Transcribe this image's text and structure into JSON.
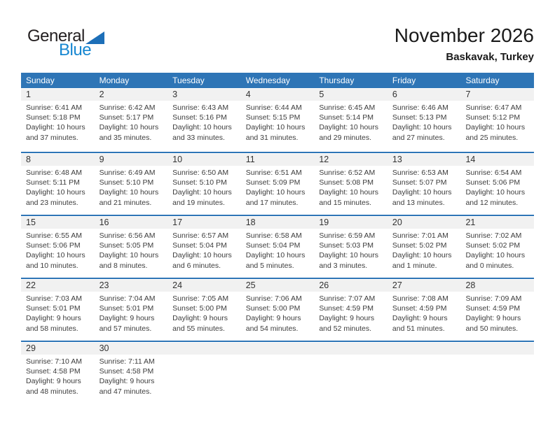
{
  "logo": {
    "part1": "General",
    "part2": "Blue"
  },
  "header": {
    "title": "November 2026",
    "location": "Baskavak, Turkey"
  },
  "colors": {
    "header_blue": "#2e75b6",
    "row_border_blue": "#2e75b6",
    "band_gray": "#f1f1f1",
    "logo_text_blue": "#1787d1",
    "logo_triangle_blue": "#1d6fb8"
  },
  "weekdays": [
    "Sunday",
    "Monday",
    "Tuesday",
    "Wednesday",
    "Thursday",
    "Friday",
    "Saturday"
  ],
  "weeks": [
    {
      "days": [
        {
          "num": "1",
          "l1": "Sunrise: 6:41 AM",
          "l2": "Sunset: 5:18 PM",
          "l3": "Daylight: 10 hours",
          "l4": "and 37 minutes."
        },
        {
          "num": "2",
          "l1": "Sunrise: 6:42 AM",
          "l2": "Sunset: 5:17 PM",
          "l3": "Daylight: 10 hours",
          "l4": "and 35 minutes."
        },
        {
          "num": "3",
          "l1": "Sunrise: 6:43 AM",
          "l2": "Sunset: 5:16 PM",
          "l3": "Daylight: 10 hours",
          "l4": "and 33 minutes."
        },
        {
          "num": "4",
          "l1": "Sunrise: 6:44 AM",
          "l2": "Sunset: 5:15 PM",
          "l3": "Daylight: 10 hours",
          "l4": "and 31 minutes."
        },
        {
          "num": "5",
          "l1": "Sunrise: 6:45 AM",
          "l2": "Sunset: 5:14 PM",
          "l3": "Daylight: 10 hours",
          "l4": "and 29 minutes."
        },
        {
          "num": "6",
          "l1": "Sunrise: 6:46 AM",
          "l2": "Sunset: 5:13 PM",
          "l3": "Daylight: 10 hours",
          "l4": "and 27 minutes."
        },
        {
          "num": "7",
          "l1": "Sunrise: 6:47 AM",
          "l2": "Sunset: 5:12 PM",
          "l3": "Daylight: 10 hours",
          "l4": "and 25 minutes."
        }
      ]
    },
    {
      "days": [
        {
          "num": "8",
          "l1": "Sunrise: 6:48 AM",
          "l2": "Sunset: 5:11 PM",
          "l3": "Daylight: 10 hours",
          "l4": "and 23 minutes."
        },
        {
          "num": "9",
          "l1": "Sunrise: 6:49 AM",
          "l2": "Sunset: 5:10 PM",
          "l3": "Daylight: 10 hours",
          "l4": "and 21 minutes."
        },
        {
          "num": "10",
          "l1": "Sunrise: 6:50 AM",
          "l2": "Sunset: 5:10 PM",
          "l3": "Daylight: 10 hours",
          "l4": "and 19 minutes."
        },
        {
          "num": "11",
          "l1": "Sunrise: 6:51 AM",
          "l2": "Sunset: 5:09 PM",
          "l3": "Daylight: 10 hours",
          "l4": "and 17 minutes."
        },
        {
          "num": "12",
          "l1": "Sunrise: 6:52 AM",
          "l2": "Sunset: 5:08 PM",
          "l3": "Daylight: 10 hours",
          "l4": "and 15 minutes."
        },
        {
          "num": "13",
          "l1": "Sunrise: 6:53 AM",
          "l2": "Sunset: 5:07 PM",
          "l3": "Daylight: 10 hours",
          "l4": "and 13 minutes."
        },
        {
          "num": "14",
          "l1": "Sunrise: 6:54 AM",
          "l2": "Sunset: 5:06 PM",
          "l3": "Daylight: 10 hours",
          "l4": "and 12 minutes."
        }
      ]
    },
    {
      "days": [
        {
          "num": "15",
          "l1": "Sunrise: 6:55 AM",
          "l2": "Sunset: 5:06 PM",
          "l3": "Daylight: 10 hours",
          "l4": "and 10 minutes."
        },
        {
          "num": "16",
          "l1": "Sunrise: 6:56 AM",
          "l2": "Sunset: 5:05 PM",
          "l3": "Daylight: 10 hours",
          "l4": "and 8 minutes."
        },
        {
          "num": "17",
          "l1": "Sunrise: 6:57 AM",
          "l2": "Sunset: 5:04 PM",
          "l3": "Daylight: 10 hours",
          "l4": "and 6 minutes."
        },
        {
          "num": "18",
          "l1": "Sunrise: 6:58 AM",
          "l2": "Sunset: 5:04 PM",
          "l3": "Daylight: 10 hours",
          "l4": "and 5 minutes."
        },
        {
          "num": "19",
          "l1": "Sunrise: 6:59 AM",
          "l2": "Sunset: 5:03 PM",
          "l3": "Daylight: 10 hours",
          "l4": "and 3 minutes."
        },
        {
          "num": "20",
          "l1": "Sunrise: 7:01 AM",
          "l2": "Sunset: 5:02 PM",
          "l3": "Daylight: 10 hours",
          "l4": "and 1 minute."
        },
        {
          "num": "21",
          "l1": "Sunrise: 7:02 AM",
          "l2": "Sunset: 5:02 PM",
          "l3": "Daylight: 10 hours",
          "l4": "and 0 minutes."
        }
      ]
    },
    {
      "days": [
        {
          "num": "22",
          "l1": "Sunrise: 7:03 AM",
          "l2": "Sunset: 5:01 PM",
          "l3": "Daylight: 9 hours",
          "l4": "and 58 minutes."
        },
        {
          "num": "23",
          "l1": "Sunrise: 7:04 AM",
          "l2": "Sunset: 5:01 PM",
          "l3": "Daylight: 9 hours",
          "l4": "and 57 minutes."
        },
        {
          "num": "24",
          "l1": "Sunrise: 7:05 AM",
          "l2": "Sunset: 5:00 PM",
          "l3": "Daylight: 9 hours",
          "l4": "and 55 minutes."
        },
        {
          "num": "25",
          "l1": "Sunrise: 7:06 AM",
          "l2": "Sunset: 5:00 PM",
          "l3": "Daylight: 9 hours",
          "l4": "and 54 minutes."
        },
        {
          "num": "26",
          "l1": "Sunrise: 7:07 AM",
          "l2": "Sunset: 4:59 PM",
          "l3": "Daylight: 9 hours",
          "l4": "and 52 minutes."
        },
        {
          "num": "27",
          "l1": "Sunrise: 7:08 AM",
          "l2": "Sunset: 4:59 PM",
          "l3": "Daylight: 9 hours",
          "l4": "and 51 minutes."
        },
        {
          "num": "28",
          "l1": "Sunrise: 7:09 AM",
          "l2": "Sunset: 4:59 PM",
          "l3": "Daylight: 9 hours",
          "l4": "and 50 minutes."
        }
      ]
    },
    {
      "days": [
        {
          "num": "29",
          "l1": "Sunrise: 7:10 AM",
          "l2": "Sunset: 4:58 PM",
          "l3": "Daylight: 9 hours",
          "l4": "and 48 minutes."
        },
        {
          "num": "30",
          "l1": "Sunrise: 7:11 AM",
          "l2": "Sunset: 4:58 PM",
          "l3": "Daylight: 9 hours",
          "l4": "and 47 minutes."
        },
        {
          "num": "",
          "l1": "",
          "l2": "",
          "l3": "",
          "l4": ""
        },
        {
          "num": "",
          "l1": "",
          "l2": "",
          "l3": "",
          "l4": ""
        },
        {
          "num": "",
          "l1": "",
          "l2": "",
          "l3": "",
          "l4": ""
        },
        {
          "num": "",
          "l1": "",
          "l2": "",
          "l3": "",
          "l4": ""
        },
        {
          "num": "",
          "l1": "",
          "l2": "",
          "l3": "",
          "l4": ""
        }
      ]
    }
  ]
}
